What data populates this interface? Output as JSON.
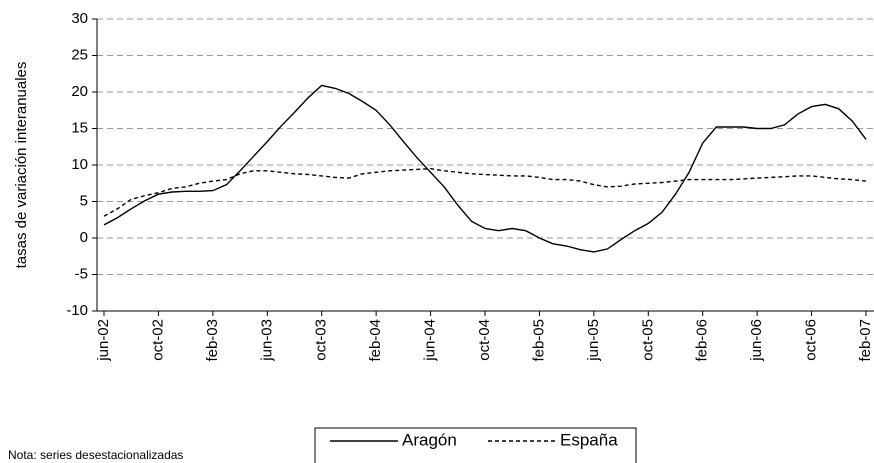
{
  "chart_data": {
    "type": "line",
    "y_label": "tasas de variación interanuales",
    "note": "Nota: series desestacionalizadas",
    "categories": [
      "jun-02",
      null,
      null,
      null,
      "oct-02",
      null,
      null,
      null,
      "feb-03",
      null,
      null,
      null,
      "jun-03",
      null,
      null,
      null,
      "oct-03",
      null,
      null,
      null,
      "feb-04",
      null,
      null,
      null,
      "jun-04",
      null,
      null,
      null,
      "oct-04",
      null,
      null,
      null,
      "feb-05",
      null,
      null,
      null,
      "jun-05",
      null,
      null,
      null,
      "oct-05",
      null,
      null,
      null,
      "feb-06",
      null,
      null,
      null,
      "jun-06",
      null,
      null,
      null,
      "oct-06",
      null,
      null,
      null,
      "feb-07"
    ],
    "series": [
      {
        "name": "Aragón",
        "color": "#000000",
        "dash": false,
        "values": [
          1.8,
          2.8,
          4,
          5.1,
          6,
          6.3,
          6.4,
          6.4,
          6.5,
          7.3,
          9.2,
          11.2,
          13.2,
          15.3,
          17.2,
          19.2,
          20.9,
          20.5,
          19.8,
          18.7,
          17.5,
          15.5,
          13.2,
          11,
          9,
          7,
          4.5,
          2.3,
          1.3,
          1,
          1.3,
          1,
          0,
          -0.8,
          -1.1,
          -1.6,
          -1.9,
          -1.5,
          -0.2,
          1,
          2,
          3.5,
          6,
          9,
          13,
          15.2,
          15.2,
          15.2,
          15,
          15,
          15.5,
          17,
          18,
          18.3,
          17.7,
          16,
          13.5
        ]
      },
      {
        "name": "España",
        "color": "#000000",
        "dash": true,
        "values": [
          3,
          4,
          5.3,
          5.8,
          6.2,
          6.8,
          7,
          7.5,
          7.8,
          8,
          8.8,
          9.2,
          9.2,
          9,
          8.8,
          8.7,
          8.5,
          8.3,
          8.2,
          8.8,
          9,
          9.2,
          9.3,
          9.4,
          9.5,
          9.2,
          9,
          8.8,
          8.7,
          8.6,
          8.5,
          8.5,
          8.3,
          8,
          8,
          7.8,
          7.3,
          7,
          7.1,
          7.4,
          7.5,
          7.6,
          7.8,
          8,
          8,
          8,
          8,
          8.1,
          8.2,
          8.3,
          8.4,
          8.5,
          8.5,
          8.3,
          8.1,
          8,
          7.8
        ]
      }
    ],
    "ylim": [
      -10,
      30
    ],
    "yticks": [
      -10,
      -5,
      0,
      5,
      10,
      15,
      20,
      25,
      30
    ],
    "grid": true
  }
}
